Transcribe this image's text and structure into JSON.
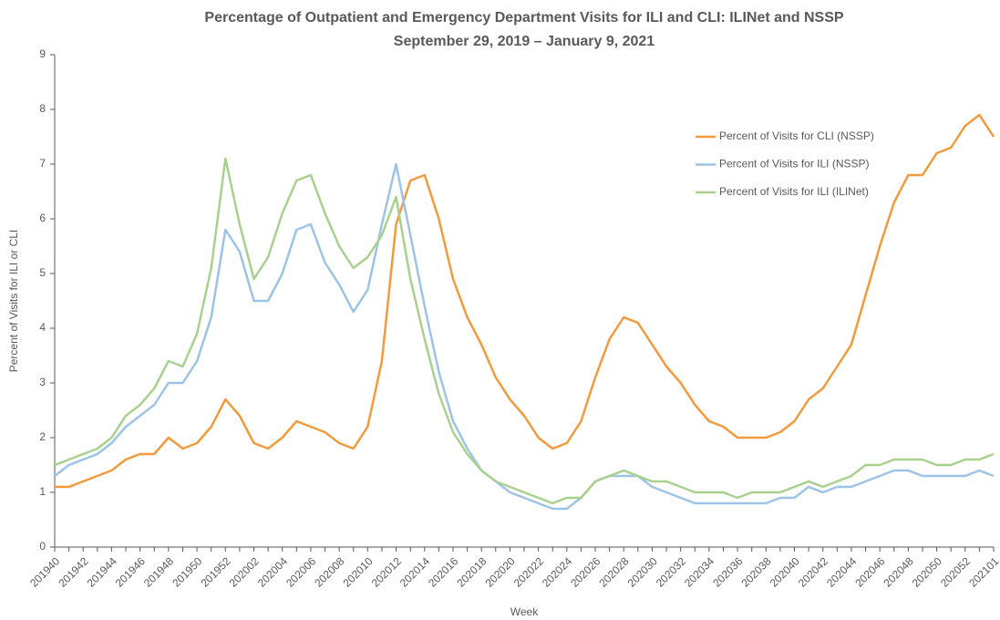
{
  "chart_data": {
    "type": "line",
    "title": "Percentage of Outpatient and Emergency Department Visits for ILI and CLI: ILINet and NSSP",
    "subtitle": "September 29, 2019 – January 9, 2021",
    "x_label": "Week",
    "y_label": "Percent of Visits for ILI or CLI",
    "categories": [
      "201940",
      null,
      "201942",
      null,
      "201944",
      null,
      "201946",
      null,
      "201948",
      null,
      "201950",
      null,
      "201952",
      null,
      "202002",
      null,
      "202004",
      null,
      "202006",
      null,
      "202008",
      null,
      "202010",
      null,
      "202012",
      null,
      "202014",
      null,
      "202016",
      null,
      "202018",
      null,
      "202020",
      null,
      "202022",
      null,
      "202024",
      null,
      "202026",
      null,
      "202028",
      null,
      "202030",
      null,
      "202032",
      null,
      "202034",
      null,
      "202036",
      null,
      "202038",
      null,
      "202040",
      null,
      "202042",
      null,
      "202044",
      null,
      "202046",
      null,
      "202048",
      null,
      "202050",
      null,
      "202052",
      null,
      "202101"
    ],
    "series": [
      {
        "name": "Percent of Visits for CLI (NSSP)",
        "color": "#F39A3C",
        "values": [
          1.1,
          1.1,
          1.2,
          1.3,
          1.4,
          1.6,
          1.7,
          1.7,
          2.0,
          1.8,
          1.9,
          2.2,
          2.7,
          2.4,
          1.9,
          1.8,
          2.0,
          2.3,
          2.2,
          2.1,
          1.9,
          1.8,
          2.2,
          3.4,
          5.9,
          6.7,
          6.8,
          6.0,
          4.9,
          4.2,
          3.7,
          3.1,
          2.7,
          2.4,
          2.0,
          1.8,
          1.9,
          2.3,
          3.1,
          3.8,
          4.2,
          4.1,
          3.7,
          3.3,
          3.0,
          2.6,
          2.3,
          2.2,
          2.0,
          2.0,
          2.0,
          2.1,
          2.3,
          2.7,
          2.9,
          3.3,
          3.7,
          4.6,
          5.5,
          6.3,
          6.8,
          6.8,
          7.2,
          7.3,
          7.7,
          7.9,
          7.5
        ]
      },
      {
        "name": "Percent of Visits for ILI (NSSP)",
        "color": "#9DC3E6",
        "values": [
          1.3,
          1.5,
          1.6,
          1.7,
          1.9,
          2.2,
          2.4,
          2.6,
          3.0,
          3.0,
          3.4,
          4.2,
          5.8,
          5.4,
          4.5,
          4.5,
          5.0,
          5.8,
          5.9,
          5.2,
          4.8,
          4.3,
          4.7,
          5.9,
          7.0,
          5.7,
          4.4,
          3.2,
          2.3,
          1.8,
          1.4,
          1.2,
          1.0,
          0.9,
          0.8,
          0.7,
          0.7,
          0.9,
          1.2,
          1.3,
          1.3,
          1.3,
          1.1,
          1.0,
          0.9,
          0.8,
          0.8,
          0.8,
          0.8,
          0.8,
          0.8,
          0.9,
          0.9,
          1.1,
          1.0,
          1.1,
          1.1,
          1.2,
          1.3,
          1.4,
          1.4,
          1.3,
          1.3,
          1.3,
          1.3,
          1.4,
          1.3
        ]
      },
      {
        "name": "Percent of Visits for ILI (ILINet)",
        "color": "#A9D18E",
        "values": [
          1.5,
          1.6,
          1.7,
          1.8,
          2.0,
          2.4,
          2.6,
          2.9,
          3.4,
          3.3,
          3.9,
          5.1,
          7.1,
          5.9,
          4.9,
          5.3,
          6.1,
          6.7,
          6.8,
          6.1,
          5.5,
          5.1,
          5.3,
          5.7,
          6.4,
          4.9,
          3.8,
          2.8,
          2.1,
          1.7,
          1.4,
          1.2,
          1.1,
          1.0,
          0.9,
          0.8,
          0.9,
          0.9,
          1.2,
          1.3,
          1.4,
          1.3,
          1.2,
          1.2,
          1.1,
          1.0,
          1.0,
          1.0,
          0.9,
          1.0,
          1.0,
          1.0,
          1.1,
          1.2,
          1.1,
          1.2,
          1.3,
          1.5,
          1.5,
          1.6,
          1.6,
          1.6,
          1.5,
          1.5,
          1.6,
          1.6,
          1.7
        ]
      }
    ],
    "ylim": [
      0,
      9
    ],
    "yticks": [
      0,
      1,
      2,
      3,
      4,
      5,
      6,
      7,
      8,
      9
    ],
    "grid": false,
    "legend": "upper-right"
  }
}
